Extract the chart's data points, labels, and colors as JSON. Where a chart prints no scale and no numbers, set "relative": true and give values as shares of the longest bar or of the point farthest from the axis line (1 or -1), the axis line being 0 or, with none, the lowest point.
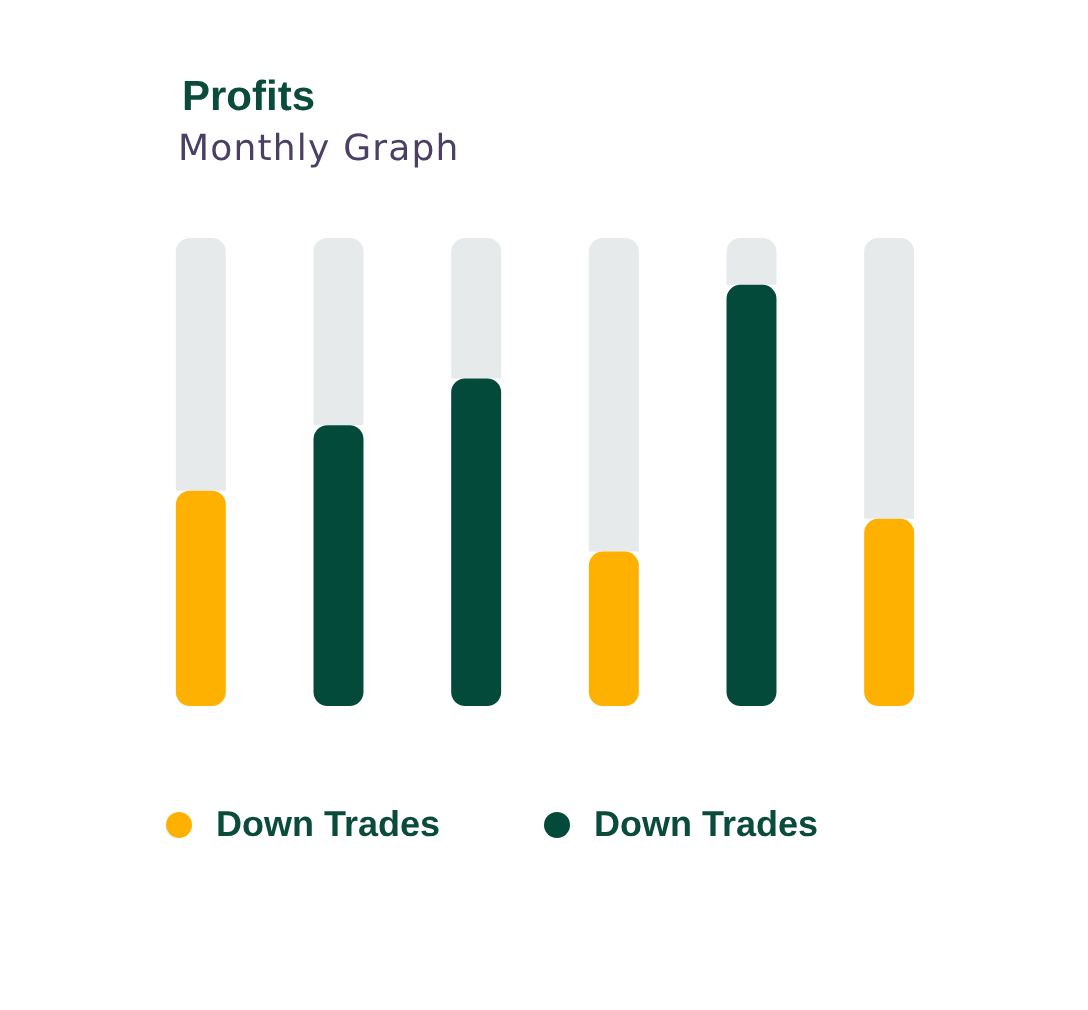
{
  "chart_data": {
    "type": "bar",
    "title": "Profits",
    "subtitle": "Monthly Graph",
    "categories": [
      null,
      null,
      null,
      null,
      null,
      null
    ],
    "relative": true,
    "stacked": true,
    "legend": "bottom",
    "tick_labels": false,
    "series": [
      {
        "name": "Down Trades",
        "color": "#feb100",
        "values": [
          0.46,
          null,
          null,
          0.33,
          null,
          0.4
        ]
      },
      {
        "name": "Down Trades",
        "color": "#034a3b",
        "values": [
          null,
          0.6,
          0.7,
          null,
          0.9,
          null
        ]
      },
      {
        "color": "#e6eaea",
        "values": [
          0.54,
          0.4,
          0.3,
          0.67,
          0.1,
          0.6
        ]
      }
    ]
  }
}
